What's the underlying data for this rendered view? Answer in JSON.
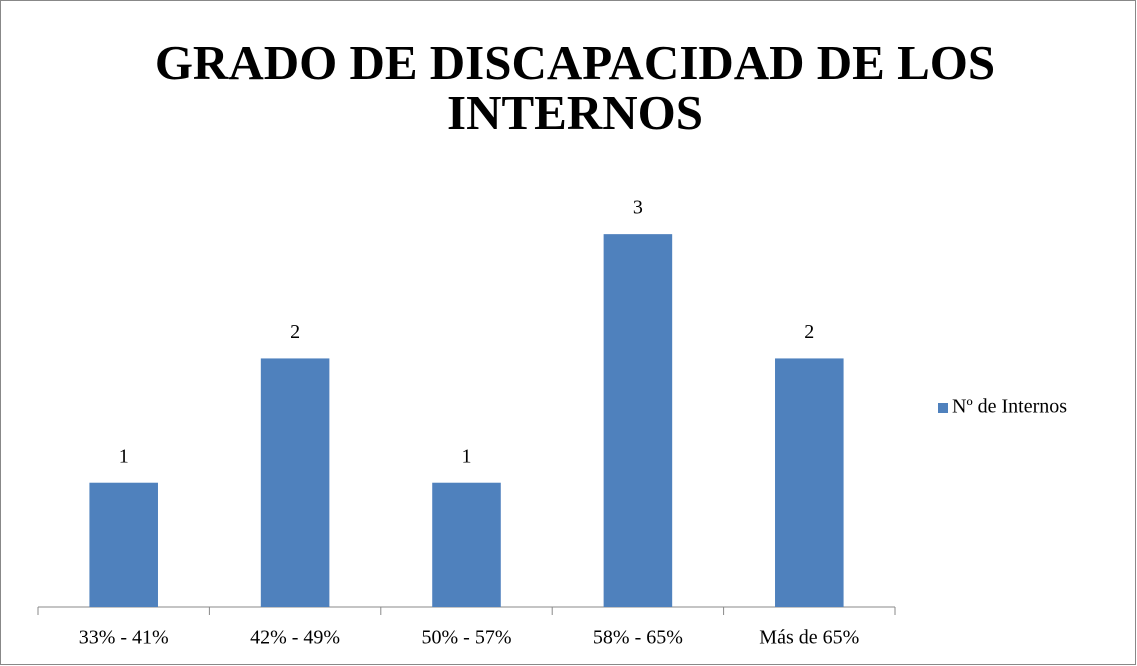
{
  "chart_data": {
    "type": "bar",
    "title": "GRADO DE DISCAPACIDAD DE LOS INTERNOS",
    "categories": [
      "33% - 41%",
      "42% - 49%",
      "50% - 57%",
      "58% - 65%",
      "Más de 65%"
    ],
    "series": [
      {
        "name": "Nº de Internos",
        "color": "#4f81bd",
        "values": [
          1,
          2,
          1,
          3,
          2
        ]
      }
    ],
    "ylim": [
      0,
      3.5
    ],
    "legend": "right"
  }
}
